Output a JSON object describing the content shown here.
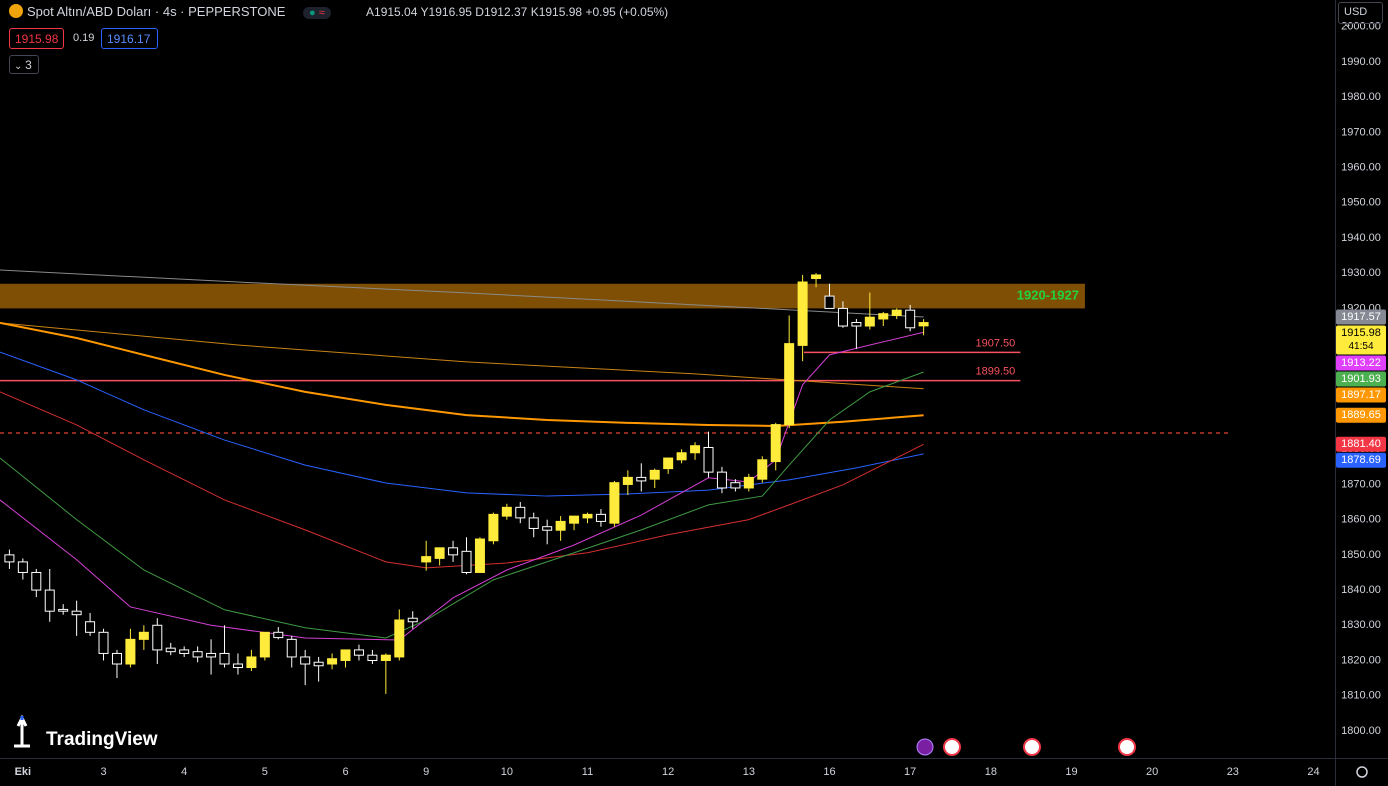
{
  "header": {
    "symbol": "Spot Altın/ABD Doları · 4s · PEPPERSTONE",
    "ohlc_labels": [
      "A",
      "Y",
      "D",
      "K"
    ],
    "change": "+0.95 (+0.05%)",
    "bid": 1915.98,
    "spread": 0.19,
    "ask": 1916.17,
    "indicators_count": 3,
    "currency": "USD",
    "countdown": "41:54",
    "logo": "TradingView"
  },
  "chart_data": {
    "type": "candlestick",
    "up_color": "#ffeb3b",
    "down_color": "#ffffff",
    "xlim": [
      -0.7,
      98.6
    ],
    "ylim": [
      1792.3,
      2007.6
    ],
    "xticks": [
      {
        "value": 1,
        "label": "Eki"
      },
      {
        "value": 7,
        "label": "3"
      },
      {
        "value": 13,
        "label": "4"
      },
      {
        "value": 19,
        "label": "5"
      },
      {
        "value": 25,
        "label": "6"
      },
      {
        "value": 31,
        "label": "9"
      },
      {
        "value": 37,
        "label": "10"
      },
      {
        "value": 43,
        "label": "11"
      },
      {
        "value": 49,
        "label": "12"
      },
      {
        "value": 55,
        "label": "13"
      },
      {
        "value": 61,
        "label": "16"
      },
      {
        "value": 67,
        "label": "17"
      },
      {
        "value": 73,
        "label": "18"
      },
      {
        "value": 79,
        "label": "19"
      },
      {
        "value": 85,
        "label": "20"
      },
      {
        "value": 91,
        "label": "23"
      },
      {
        "value": 97,
        "label": "24"
      }
    ],
    "yticks": [
      {
        "value": 1800,
        "label": "1800.00"
      },
      {
        "value": 1810,
        "label": "1810.00"
      },
      {
        "value": 1820,
        "label": "1820.00"
      },
      {
        "value": 1830,
        "label": "1830.00"
      },
      {
        "value": 1840,
        "label": "1840.00"
      },
      {
        "value": 1850,
        "label": "1850.00"
      },
      {
        "value": 1860,
        "label": "1860.00"
      },
      {
        "value": 1870,
        "label": "1870.00"
      },
      {
        "value": 1880,
        "label": "1880.00"
      },
      {
        "value": 1890,
        "label": "1890.00"
      },
      {
        "value": 1900,
        "label": "1900.00"
      },
      {
        "value": 1910,
        "label": "1910.00"
      },
      {
        "value": 1920,
        "label": "1920.00"
      },
      {
        "value": 1930,
        "label": "1930.00"
      },
      {
        "value": 1940,
        "label": "1940.00"
      },
      {
        "value": 1950,
        "label": "1950.00"
      },
      {
        "value": 1960,
        "label": "1960.00"
      },
      {
        "value": 1970,
        "label": "1970.00"
      },
      {
        "value": 1980,
        "label": "1980.00"
      },
      {
        "value": 1990,
        "label": "1990.00"
      },
      {
        "value": 2000,
        "label": "2000.00"
      }
    ],
    "ohlc": {
      "open": [
        1850,
        1848,
        1845,
        1840,
        1834.5,
        1834,
        1831,
        1828,
        1822,
        1819,
        1826,
        1830,
        1823.5,
        1823,
        1822.5,
        1822,
        1822,
        1819,
        1818,
        1821,
        1828,
        1826,
        1821,
        1819.5,
        1819,
        1820,
        1823,
        1821.5,
        1820,
        1821,
        1832,
        1848,
        1849,
        1852,
        1851,
        1845,
        1854,
        1861,
        1863.5,
        1860.5,
        1858,
        1857,
        1859,
        1860.5,
        1861.5,
        1859,
        1870,
        1872,
        1871.5,
        1874.5,
        1877,
        1879,
        1880.5,
        1873.5,
        1870.5,
        1869,
        1871.5,
        1876.5,
        1887,
        1909.5,
        1928.5,
        1923.5,
        1920,
        1916,
        1915,
        1917,
        1918,
        1919.5,
        1915.04
      ],
      "high": [
        1851.5,
        1849,
        1846,
        1846,
        1836,
        1837,
        1833.5,
        1829,
        1823,
        1829,
        1830,
        1832,
        1825,
        1824,
        1824,
        1826,
        1830,
        1822,
        1823,
        1828,
        1829.5,
        1827,
        1823,
        1821,
        1822,
        1823,
        1824.5,
        1823,
        1822,
        1834.5,
        1834,
        1854,
        1852,
        1854,
        1855,
        1855,
        1862,
        1864.5,
        1865,
        1862,
        1860,
        1861,
        1861,
        1862,
        1863,
        1871,
        1874,
        1876,
        1874.5,
        1877.5,
        1880,
        1882,
        1885,
        1875,
        1871.5,
        1873,
        1878,
        1887.5,
        1918,
        1929.5,
        1930,
        1927,
        1922,
        1917,
        1924.5,
        1919,
        1920,
        1921,
        1916.95
      ],
      "low": [
        1846,
        1843,
        1838,
        1831,
        1833,
        1827,
        1827,
        1820,
        1815,
        1818,
        1823,
        1819,
        1821.5,
        1821,
        1819.5,
        1816,
        1818,
        1816,
        1817,
        1820,
        1826,
        1818,
        1813,
        1814,
        1817.5,
        1818,
        1820,
        1819,
        1810.5,
        1820,
        1829,
        1845.5,
        1847,
        1848,
        1844.5,
        1845,
        1853,
        1860,
        1859,
        1855,
        1853,
        1854,
        1857,
        1859,
        1858,
        1858,
        1867,
        1868,
        1869,
        1873,
        1876,
        1877,
        1872,
        1867.5,
        1868,
        1868,
        1870.5,
        1874,
        1886,
        1905,
        1926,
        1920,
        1914.5,
        1908.5,
        1914,
        1915,
        1917,
        1913.5,
        1912.37
      ],
      "close": [
        1848,
        1845,
        1840,
        1834,
        1834,
        1833,
        1828,
        1822,
        1819,
        1826,
        1828,
        1823,
        1822.5,
        1822,
        1821,
        1821,
        1819,
        1818,
        1821,
        1828,
        1826.5,
        1821,
        1819,
        1818.5,
        1820.5,
        1823,
        1821.5,
        1820,
        1821.5,
        1831.5,
        1831,
        1849.5,
        1852,
        1850,
        1845,
        1854.5,
        1861.5,
        1863.5,
        1860.5,
        1857.5,
        1857,
        1859.5,
        1861,
        1861.5,
        1859.5,
        1870.5,
        1872,
        1871,
        1874,
        1877.5,
        1879,
        1881,
        1873.5,
        1869,
        1869,
        1872,
        1877,
        1887,
        1910,
        1927.5,
        1929.5,
        1920,
        1915,
        1915,
        1917.5,
        1918.5,
        1919.5,
        1914.5,
        1915.98
      ]
    },
    "overlays": [
      {
        "type": "line",
        "color": "#8a8a8a",
        "width": 1,
        "x": [
          -0.7,
          17,
          34,
          51,
          68
        ],
        "values": [
          1930.9,
          1927.5,
          1924.4,
          1921,
          1917.57
        ],
        "badge": "1917.57",
        "badge_color": "#868993"
      },
      {
        "type": "line",
        "color": "#c98316",
        "width": 1,
        "x": [
          -0.7,
          17,
          34,
          51,
          68
        ],
        "values": [
          1915.9,
          1909.6,
          1904.8,
          1901.4,
          1897.17
        ],
        "badge": "1897.17",
        "badge_color": "#ff9800"
      },
      {
        "type": "line",
        "color": "#ff9800",
        "width": 2,
        "x": [
          -0.7,
          5,
          10,
          16,
          22,
          28,
          34,
          40,
          46,
          52,
          57,
          62,
          68
        ],
        "values": [
          1915.9,
          1911.6,
          1906.8,
          1901.1,
          1896.3,
          1892.6,
          1889.7,
          1888.3,
          1887.5,
          1886.9,
          1886.6,
          1887.8,
          1889.65
        ],
        "badge": "1889.65",
        "badge_color": "#ff9800"
      },
      {
        "type": "line",
        "color": "#2962ff",
        "width": 1,
        "x": [
          -0.7,
          5,
          10,
          16,
          22,
          28,
          34,
          40,
          46,
          52,
          58,
          63,
          68
        ],
        "values": [
          1907.6,
          1899.7,
          1891.2,
          1882.6,
          1875.5,
          1870.4,
          1867.6,
          1866.7,
          1867.3,
          1868.4,
          1871.3,
          1874.7,
          1878.69
        ],
        "badge": "1878.69",
        "badge_color": "#2962ff"
      },
      {
        "type": "line",
        "color": "#d32f2f",
        "width": 1,
        "x": [
          -0.7,
          5,
          10,
          16,
          22,
          28,
          31,
          37,
          43,
          49,
          55,
          58,
          62,
          68
        ],
        "values": [
          1896.3,
          1886.9,
          1877,
          1865.6,
          1857.1,
          1848,
          1846.3,
          1847.7,
          1850.6,
          1855.7,
          1860,
          1864.2,
          1869.9,
          1881.4
        ],
        "badge": "1881.40",
        "badge_color": "#f23645"
      },
      {
        "type": "line",
        "color": "#3f9a43",
        "width": 1,
        "x": [
          -0.7,
          5,
          10,
          16,
          22,
          28,
          31,
          36,
          42,
          47,
          52,
          56,
          58,
          61,
          64,
          68
        ],
        "values": [
          1877.5,
          1860,
          1845.7,
          1834.4,
          1829.3,
          1826.4,
          1831.5,
          1842.9,
          1850.6,
          1857.1,
          1864.2,
          1866.7,
          1875.5,
          1888.3,
          1896.3,
          1901.93
        ],
        "badge": "1901.93",
        "badge_color": "#4caf50"
      },
      {
        "type": "line",
        "color": "#d33fd3",
        "width": 1,
        "x": [
          -0.7,
          5,
          9,
          15,
          22,
          29,
          33,
          37,
          42,
          47,
          52,
          55,
          57,
          59,
          61,
          64,
          68
        ],
        "values": [
          1865.6,
          1848.6,
          1835.2,
          1830,
          1826.4,
          1825.8,
          1837.8,
          1845.7,
          1852.8,
          1861.3,
          1871.9,
          1870.7,
          1877,
          1898.3,
          1906.8,
          1909.6,
          1913.22
        ],
        "badge": "1913.22",
        "badge_color": "#e040fb"
      }
    ],
    "zone": {
      "range": [
        1920,
        1927
      ],
      "x": [
        -0.7,
        80
      ],
      "label": "1920-1927",
      "color": "#7e4f05",
      "label_color": "#22d33c"
    },
    "hlines": [
      {
        "value": 1907.5,
        "label": "1907.50",
        "color": "#f7525f",
        "x": [
          59.1,
          75.2
        ]
      },
      {
        "value": 1899.5,
        "label": "1899.50",
        "color": "#f7525f",
        "x": [
          -0.7,
          75.2
        ]
      },
      {
        "value": 1884.6,
        "color": "#c0392b",
        "dashed": true,
        "x": [
          -0.7,
          90.8
        ]
      }
    ]
  }
}
